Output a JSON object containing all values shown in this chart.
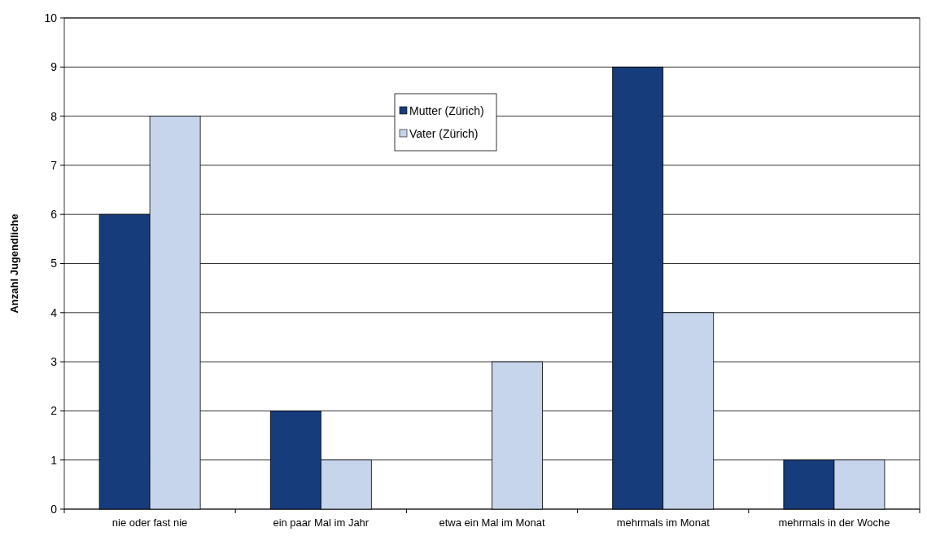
{
  "chart_data": {
    "type": "bar",
    "ylabel": "Anzahl Jugendliche",
    "categories": [
      "nie oder fast nie",
      "ein paar Mal im Jahr",
      "etwa ein Mal im Monat",
      "mehrmals im Monat",
      "mehrmals in der Woche"
    ],
    "series": [
      {
        "name": "Mutter (Zürich)",
        "color": "#173c7c",
        "values": [
          6,
          2,
          0,
          9,
          1
        ]
      },
      {
        "name": "Vater (Zürich)",
        "color": "#c6d4ec",
        "values": [
          8,
          1,
          3,
          4,
          1
        ]
      }
    ],
    "ylim": [
      0,
      10
    ],
    "yticks": [
      0,
      1,
      2,
      3,
      4,
      5,
      6,
      7,
      8,
      9,
      10
    ],
    "grid": "y",
    "legend": "top"
  }
}
